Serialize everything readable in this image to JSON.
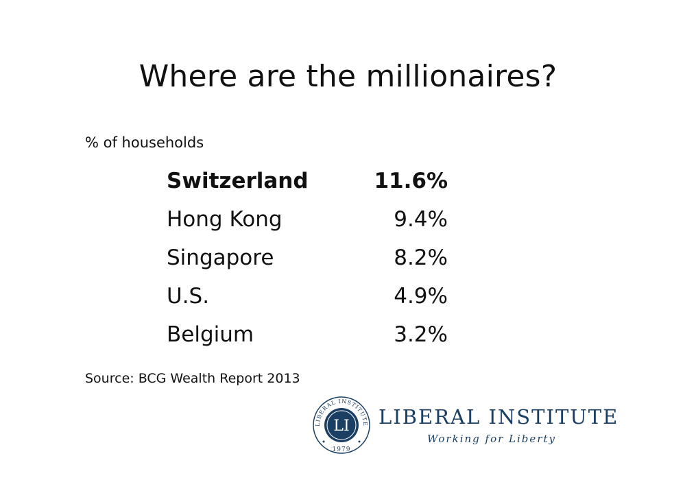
{
  "slide": {
    "title": "Where are the millionaires?",
    "subtitle": "% of households",
    "rows": [
      {
        "country": "Switzerland",
        "value": "11.6%"
      },
      {
        "country": "Hong Kong",
        "value": "9.4%"
      },
      {
        "country": "Singapore",
        "value": "8.2%"
      },
      {
        "country": "U.S.",
        "value": "4.9%"
      },
      {
        "country": "Belgium",
        "value": "3.2%"
      }
    ],
    "source": "Source: BCG Wealth Report 2013"
  },
  "logo": {
    "name": "LIBERAL INSTITUTE",
    "tagline": "Working for Liberty",
    "seal_ring_text": "LIBERAL INSTITUTE",
    "seal_monogram": "LI",
    "seal_year": "1979",
    "brand_color": "#1b3f63"
  }
}
